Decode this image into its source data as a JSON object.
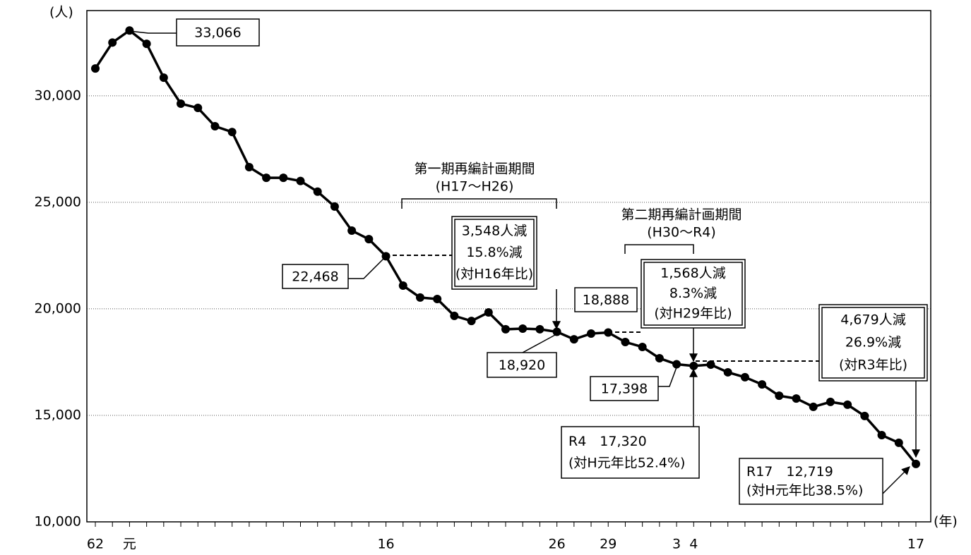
{
  "chart_data": {
    "type": "line",
    "y_unit": "(人)",
    "x_unit": "(年)",
    "categories": [
      "62",
      null,
      "元",
      null,
      null,
      null,
      null,
      null,
      null,
      null,
      null,
      null,
      null,
      null,
      null,
      null,
      null,
      "16",
      null,
      null,
      null,
      null,
      null,
      null,
      null,
      null,
      null,
      "26",
      null,
      null,
      "29",
      null,
      null,
      null,
      "3",
      "4",
      null,
      null,
      null,
      null,
      null,
      null,
      null,
      null,
      null,
      null,
      null,
      null,
      "17"
    ],
    "values": [
      31280,
      32500,
      33066,
      32440,
      30850,
      29630,
      29430,
      28570,
      28300,
      26650,
      26150,
      26150,
      26000,
      25500,
      24800,
      23670,
      23270,
      22468,
      21090,
      20530,
      20460,
      19670,
      19430,
      19830,
      19040,
      19070,
      19040,
      18920,
      18570,
      18840,
      18888,
      18440,
      18210,
      17680,
      17398,
      17320,
      17380,
      17020,
      16790,
      16450,
      15920,
      15790,
      15400,
      15630,
      15500,
      14970,
      14070,
      13710,
      12719
    ],
    "value_labels": [
      null,
      null,
      "33,066",
      null,
      null,
      null,
      null,
      null,
      null,
      null,
      null,
      null,
      null,
      null,
      null,
      null,
      null,
      "22,468",
      null,
      null,
      null,
      null,
      null,
      null,
      null,
      null,
      null,
      "18,920",
      null,
      null,
      "18,888",
      null,
      null,
      null,
      "17,398",
      null,
      null,
      null,
      null,
      null,
      null,
      null,
      null,
      null,
      null,
      null,
      null,
      null,
      null
    ],
    "color": "#000000",
    "ylim": [
      10000,
      34000
    ],
    "yticks": [
      {
        "value": 10000,
        "label": "10,000"
      },
      {
        "value": 15000,
        "label": "15,000"
      },
      {
        "value": 20000,
        "label": "20,000"
      },
      {
        "value": 25000,
        "label": "25,000"
      },
      {
        "value": 30000,
        "label": "30,000"
      }
    ],
    "grid": true,
    "annotations": [
      {
        "lines": [
          "第一期再編計画期間",
          "(H17～H26)"
        ]
      },
      {
        "lines": [
          "第二期再編計画期間",
          "(H30～R4)"
        ]
      },
      {
        "lines": [
          "3,548人減",
          "15.8%減",
          "(対H16年比)"
        ]
      },
      {
        "lines": [
          "1,568人減",
          "8.3%減",
          "(対H29年比)"
        ]
      },
      {
        "lines": [
          "4,679人減",
          "26.9%減",
          "(対R3年比)"
        ]
      },
      {
        "lines": [
          "R4　17,320",
          "(対H元年比52.4%)"
        ]
      },
      {
        "lines": [
          "R17　12,719",
          "(対H元年比38.5%)"
        ]
      }
    ]
  }
}
